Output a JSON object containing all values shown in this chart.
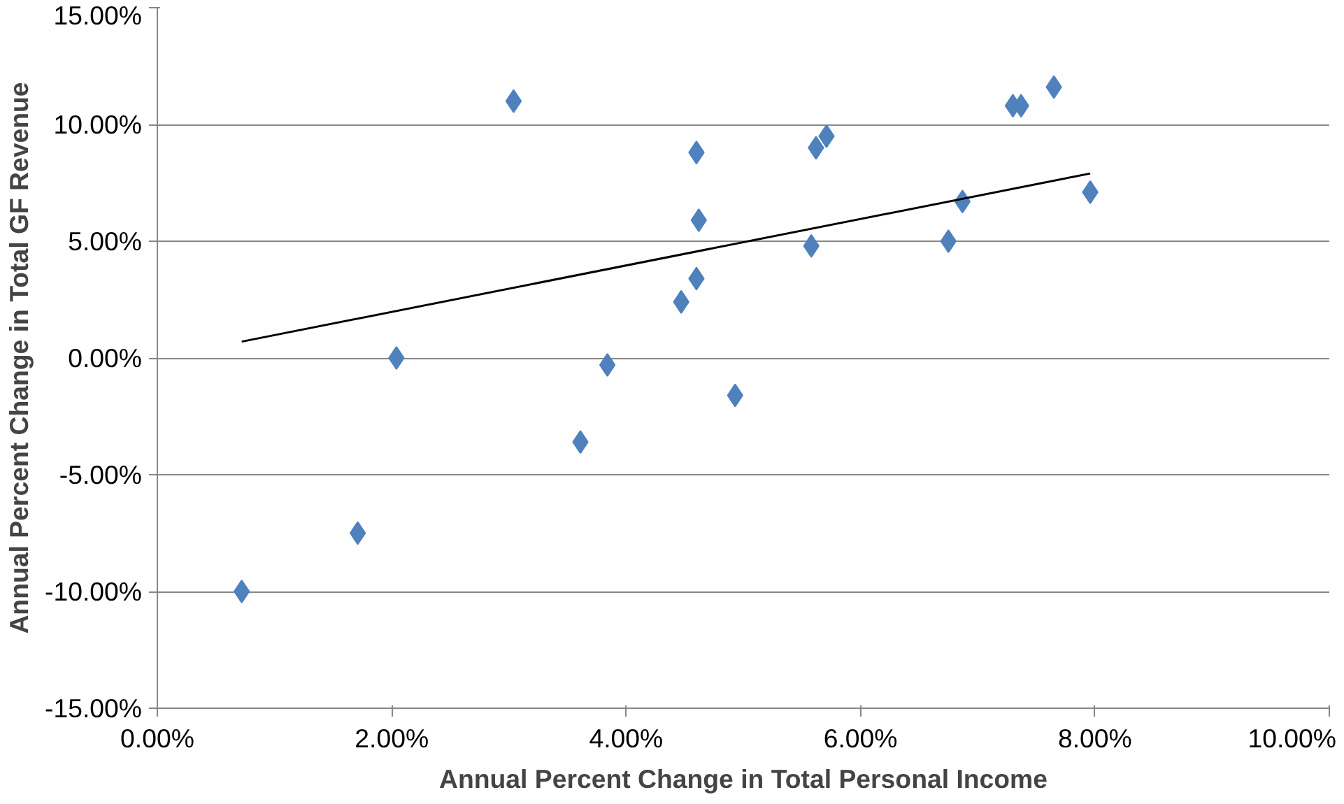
{
  "chart_data": {
    "type": "scatter",
    "xlabel": "Annual Percent Change in Total Personal Income",
    "ylabel": "Annual Percent Change in Total GF Revenue",
    "xlim": [
      0,
      10
    ],
    "ylim": [
      -15,
      15
    ],
    "xticks": [
      {
        "value": 0,
        "label": "0.00%"
      },
      {
        "value": 2,
        "label": "2.00%"
      },
      {
        "value": 4,
        "label": "4.00%"
      },
      {
        "value": 6,
        "label": "6.00%"
      },
      {
        "value": 8,
        "label": "8.00%"
      },
      {
        "value": 10,
        "label": "10.00%"
      }
    ],
    "yticks": [
      {
        "value": -15,
        "label": "-15.00%"
      },
      {
        "value": -10,
        "label": "-10.00%"
      },
      {
        "value": -5,
        "label": "-5.00%"
      },
      {
        "value": 0,
        "label": "0.00%"
      },
      {
        "value": 5,
        "label": "5.00%"
      },
      {
        "value": 10,
        "label": "10.00%"
      },
      {
        "value": 15,
        "label": "15.00%"
      }
    ],
    "grid": "y",
    "series": [
      {
        "marker": "diamond",
        "color": "#4f81bd",
        "x": [
          0.72,
          1.71,
          2.04,
          3.04,
          3.61,
          3.84,
          4.47,
          4.6,
          4.62,
          4.6,
          4.93,
          5.58,
          5.62,
          5.71,
          6.75,
          6.87,
          7.3,
          7.37,
          7.65,
          7.96
        ],
        "values": [
          -10.0,
          -7.5,
          0.0,
          11.0,
          -3.6,
          -0.3,
          2.4,
          8.8,
          5.9,
          3.4,
          -1.6,
          4.8,
          9.0,
          9.5,
          5.0,
          6.7,
          10.8,
          10.8,
          11.6,
          7.1
        ]
      },
      {
        "type": "line",
        "color": "#000000",
        "x": [
          0.72,
          7.96
        ],
        "values": [
          0.7,
          7.9
        ]
      }
    ]
  }
}
